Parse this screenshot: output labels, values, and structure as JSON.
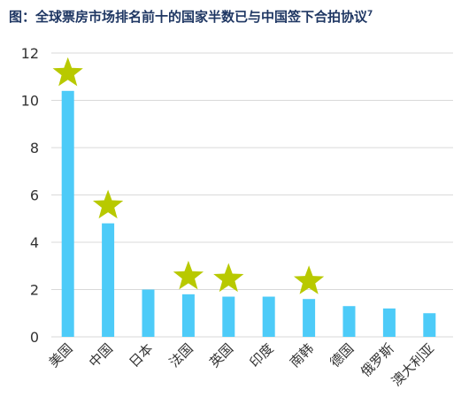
{
  "chart_data": {
    "type": "bar",
    "title": "图：全球票房市场排名前十的国家半数已与中国签下合拍协议",
    "title_superscript": "7",
    "xlabel": "",
    "ylabel": "",
    "ylim": [
      0,
      12
    ],
    "yticks": [
      "0",
      "2",
      "4",
      "6",
      "8",
      "10",
      "12"
    ],
    "categories": [
      "美国",
      "中国",
      "日本",
      "法国",
      "英国",
      "印度",
      "南韩",
      "德国",
      "俄罗斯",
      "澳大利亚"
    ],
    "values": [
      10.4,
      4.8,
      2.0,
      1.8,
      1.7,
      1.7,
      1.6,
      1.3,
      1.2,
      1.0
    ],
    "star_marked": [
      true,
      true,
      false,
      true,
      true,
      false,
      true,
      false,
      false,
      false
    ],
    "grid": true,
    "bar_color": "#4dcbf8",
    "star_color": "#b8c900",
    "grid_color": "#d9d9d9",
    "title_color": "#1f3763"
  }
}
